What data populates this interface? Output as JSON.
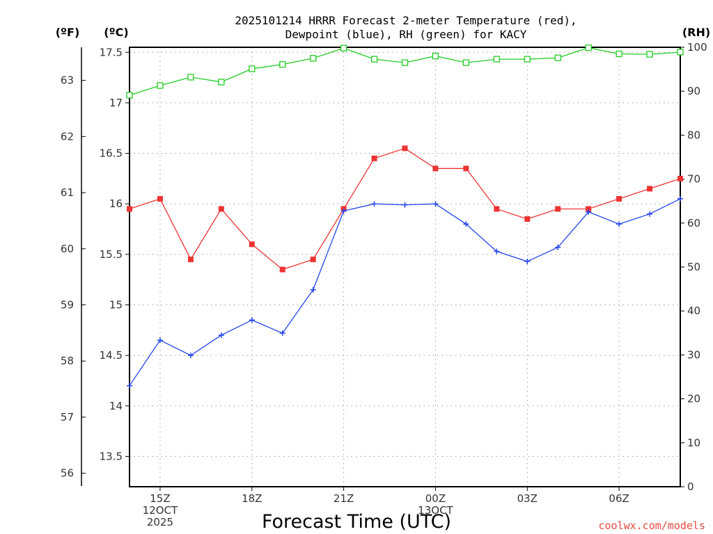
{
  "chart_data": {
    "type": "line",
    "title_lines": [
      "2025101214 HRRR Forecast 2-meter Temperature (red),",
      "Dewpoint (blue), RH (green) for KACY"
    ],
    "unit_labels": {
      "fahrenheit": "(ºF)",
      "celsius": "(ºC)",
      "rh": "(RH)"
    },
    "xlabel": "Forecast Time (UTC)",
    "credit": "coolwx.com/models",
    "x_hours": [
      0,
      1,
      2,
      3,
      4,
      5,
      6,
      7,
      8,
      9,
      10,
      11,
      12,
      13,
      14,
      15,
      16,
      17,
      18
    ],
    "x_ticks": [
      {
        "hour": 1,
        "lines": [
          "15Z",
          "12OCT",
          "2025"
        ]
      },
      {
        "hour": 4,
        "lines": [
          "18Z"
        ]
      },
      {
        "hour": 7,
        "lines": [
          "21Z"
        ]
      },
      {
        "hour": 10,
        "lines": [
          "00Z",
          "13OCT"
        ]
      },
      {
        "hour": 13,
        "lines": [
          "03Z"
        ]
      },
      {
        "hour": 16,
        "lines": [
          "06Z"
        ]
      }
    ],
    "celsius_axis": {
      "range": [
        13.2,
        17.55
      ],
      "ticks": [
        "13.5",
        "14",
        "14.5",
        "15",
        "15.5",
        "16",
        "16.5",
        "17",
        "17.5"
      ]
    },
    "fahrenheit_axis": {
      "ticks": [
        "56",
        "57",
        "58",
        "59",
        "60",
        "61",
        "62",
        "63"
      ]
    },
    "rh_axis": {
      "range": [
        0,
        100
      ],
      "ticks": [
        "0",
        "10",
        "20",
        "30",
        "40",
        "50",
        "60",
        "70",
        "80",
        "90",
        "100"
      ]
    },
    "series": [
      {
        "name": "Temperature",
        "axis": "celsius",
        "color": "#ee3333",
        "marker": "filled-square",
        "values": [
          15.95,
          16.05,
          15.45,
          15.95,
          15.6,
          15.35,
          15.45,
          15.95,
          16.45,
          16.55,
          16.35,
          16.35,
          15.95,
          15.85,
          15.95,
          15.95,
          16.05,
          16.15,
          16.25
        ]
      },
      {
        "name": "Dewpoint",
        "axis": "celsius",
        "color": "#2244ee",
        "marker": "plus",
        "values": [
          14.2,
          14.65,
          14.5,
          14.7,
          14.85,
          14.72,
          15.15,
          15.93,
          16.0,
          15.99,
          16.0,
          15.8,
          15.53,
          15.43,
          15.57,
          15.92,
          15.8,
          15.9,
          16.05
        ]
      },
      {
        "name": "RH",
        "axis": "rh",
        "color": "#22cc22",
        "marker": "open-square",
        "values": [
          89.1,
          91.3,
          93.2,
          92.1,
          95.1,
          96.1,
          97.5,
          99.8,
          97.3,
          96.5,
          98.0,
          96.5,
          97.3,
          97.3,
          97.6,
          99.9,
          98.5,
          98.4,
          98.9
        ]
      }
    ]
  }
}
